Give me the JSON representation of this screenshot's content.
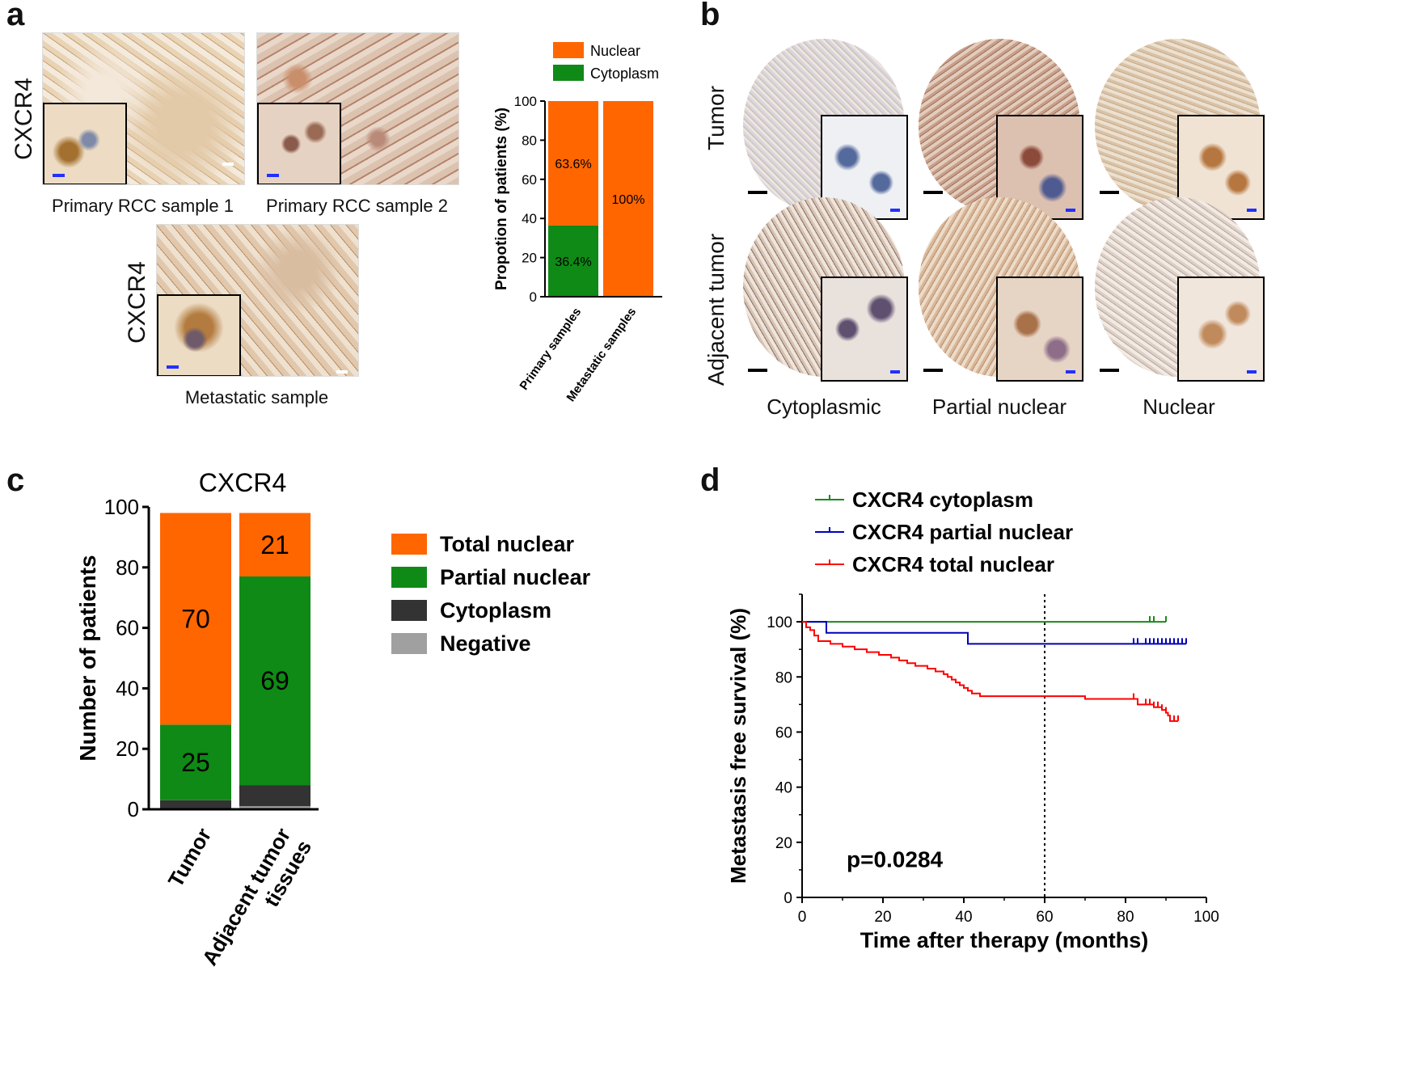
{
  "panels": {
    "a": "a",
    "b": "b",
    "c": "c",
    "d": "d"
  },
  "colors": {
    "orange": "#ff6600",
    "green": "#0f8a16",
    "dark": "#333333",
    "grey": "#a0a0a0",
    "tissue_bg": "#ead8c2",
    "blue": "#0000bb",
    "red": "#ff0000",
    "kmgreen": "#1a8a1a"
  },
  "panel_a": {
    "row_label_1": "CXCR4",
    "row_label_2": "CXCR4",
    "caption_1": "Primary RCC sample 1",
    "caption_2": "Primary RCC sample 2",
    "caption_3": "Metastatic sample"
  },
  "panel_b": {
    "row_tumor": "Tumor",
    "row_adjacent": "Adjacent tumor",
    "col_1": "Cytoplasmic",
    "col_2": "Partial nuclear",
    "col_3": "Nuclear"
  },
  "chart_data": [
    {
      "id": "a-bar",
      "type": "bar",
      "stacked": true,
      "ylabel": "Propotion of patients (%)",
      "ylim": [
        0,
        100
      ],
      "yticks": [
        0,
        20,
        40,
        60,
        80,
        100
      ],
      "categories": [
        "Primary samples",
        "Metastatic samples"
      ],
      "legend": [
        "Nuclear",
        "Cytoplasm"
      ],
      "series": [
        {
          "name": "Cytoplasm",
          "values": [
            36.4,
            0
          ],
          "labels": [
            "36.4%",
            ""
          ]
        },
        {
          "name": "Nuclear",
          "values": [
            63.6,
            100
          ],
          "labels": [
            "63.6%",
            "100%"
          ]
        }
      ]
    },
    {
      "id": "c-bar",
      "type": "bar",
      "stacked": true,
      "title": "CXCR4",
      "ylabel": "Number of patients",
      "ylim": [
        0,
        100
      ],
      "yticks": [
        0,
        20,
        40,
        60,
        80,
        100
      ],
      "categories": [
        "Tumor",
        "Adjacent tumor tissues"
      ],
      "category_lines": [
        [
          "Tumor"
        ],
        [
          "Adjacent tumor",
          "tissues"
        ]
      ],
      "legend": [
        "Total nuclear",
        "Partial nuclear",
        "Cytoplasm",
        "Negative"
      ],
      "series": [
        {
          "name": "Negative",
          "values": [
            0,
            1
          ],
          "labels": [
            "",
            ""
          ]
        },
        {
          "name": "Cytoplasm",
          "values": [
            3,
            7
          ],
          "labels": [
            "",
            ""
          ]
        },
        {
          "name": "Partial nuclear",
          "values": [
            25,
            69
          ],
          "labels": [
            "25",
            "69"
          ]
        },
        {
          "name": "Total nuclear",
          "values": [
            70,
            21
          ],
          "labels": [
            "70",
            "21"
          ]
        }
      ]
    },
    {
      "id": "d-km",
      "type": "line",
      "xlabel": "Time after therapy (months)",
      "ylabel": "Metastasis free survival (%)",
      "xlim": [
        0,
        100
      ],
      "ylim": [
        0,
        110
      ],
      "xticks": [
        0,
        20,
        40,
        60,
        80,
        100
      ],
      "yticks": [
        0,
        20,
        40,
        60,
        80,
        100
      ],
      "vline": 60,
      "annotation": "p=0.0284",
      "series": [
        {
          "name": "CXCR4 cytoplasm",
          "color": "#1a8a1a",
          "steps": [
            [
              0,
              100
            ],
            [
              90,
              100
            ]
          ],
          "censor": [
            86,
            87,
            90
          ]
        },
        {
          "name": "CXCR4 partial nuclear",
          "color": "#0000bb",
          "steps": [
            [
              0,
              100
            ],
            [
              6,
              96
            ],
            [
              41,
              92
            ],
            [
              95,
              92
            ]
          ],
          "censor": [
            82,
            83,
            85,
            86,
            87,
            88,
            89,
            90,
            91,
            92,
            93,
            94,
            95
          ]
        },
        {
          "name": "CXCR4 total nuclear",
          "color": "#ff0000",
          "steps": [
            [
              0,
              100
            ],
            [
              1,
              98
            ],
            [
              2,
              97
            ],
            [
              3,
              95
            ],
            [
              4,
              93
            ],
            [
              7,
              92
            ],
            [
              10,
              91
            ],
            [
              13,
              90
            ],
            [
              16,
              89
            ],
            [
              19,
              88
            ],
            [
              22,
              87
            ],
            [
              24,
              86
            ],
            [
              26,
              85
            ],
            [
              28,
              84
            ],
            [
              31,
              83
            ],
            [
              33,
              82
            ],
            [
              35,
              81
            ],
            [
              36,
              80
            ],
            [
              37,
              79
            ],
            [
              38,
              78
            ],
            [
              39,
              77
            ],
            [
              40,
              76
            ],
            [
              41,
              75
            ],
            [
              42,
              74
            ],
            [
              44,
              73
            ],
            [
              70,
              72
            ],
            [
              83,
              70
            ],
            [
              87,
              69
            ],
            [
              89,
              68
            ],
            [
              90,
              67
            ],
            [
              90.5,
              66
            ],
            [
              91,
              64
            ],
            [
              93,
              64
            ]
          ],
          "censor": [
            82,
            85,
            86,
            87,
            88,
            89,
            90,
            91,
            92,
            93
          ]
        }
      ]
    }
  ]
}
